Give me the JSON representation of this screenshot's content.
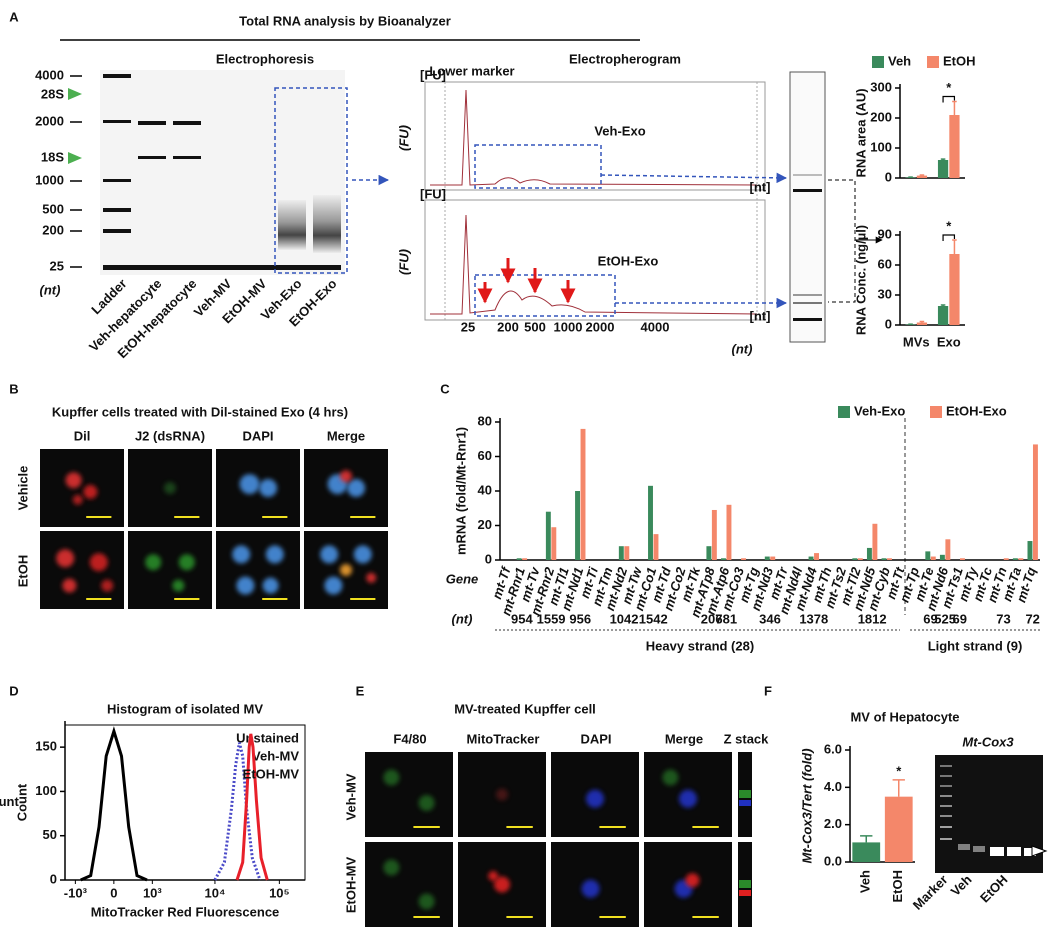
{
  "figure": {
    "A": {
      "label": "A",
      "title": "Total RNA analysis by Bioanalyzer",
      "electrophoresis": "Electrophoresis",
      "electropherogram": "Electropherogram",
      "ladder_sizes": [
        4000,
        2000,
        1000,
        500,
        200,
        25
      ],
      "rrna": [
        "28S",
        "18S"
      ],
      "unit": "(nt)",
      "lanes": [
        "Ladder",
        "Veh-hepatocyte",
        "EtOH-hepatocyte",
        "Veh-MV",
        "EtOH-MV",
        "Veh-Exo",
        "EtOH-Exo"
      ],
      "lower_marker": "Lower marker",
      "traces": [
        "Veh-Exo",
        "EtOH-Exo"
      ],
      "fu": "(FU)",
      "fu_tag": "[FU]",
      "nt_tag": "[nt]",
      "trace_ticks": [
        25,
        200,
        500,
        1000,
        2000,
        4000
      ]
    },
    "B": {
      "label": "B",
      "title": "Kupffer cells treated with Dil-stained Exo (4 hrs)",
      "columns": [
        "Dil",
        "J2 (dsRNA)",
        "DAPI",
        "Merge"
      ],
      "rows": [
        "Vehicle",
        "EtOH"
      ]
    },
    "C": {
      "label": "C",
      "gene_label": "Gene",
      "unit": "(nt)",
      "heavy": "Heavy strand (28)",
      "light": "Light strand (9)"
    },
    "D": {
      "label": "D"
    },
    "E": {
      "label": "E",
      "title": "MV-treated Kupffer cell",
      "columns": [
        "F4/80",
        "MitoTracker",
        "DAPI",
        "Merge"
      ],
      "z_stack": "Z stack",
      "rows": [
        "Veh-MV",
        "EtOH-MV"
      ]
    },
    "F": {
      "label": "F",
      "title": "MV of Hepatocyte",
      "gel_title": "Mt-Cox3",
      "gel_lanes": [
        "Marker",
        "Veh",
        "EtOH"
      ]
    }
  },
  "chart_data": [
    {
      "type": "bar",
      "ylabel": "RNA area (AU)",
      "categories": [
        null,
        null
      ],
      "series": [
        {
          "name": "Veh",
          "color": "#3a8a5c",
          "values": [
            2,
            60
          ],
          "errors": [
            1,
            3
          ]
        },
        {
          "name": "EtOH",
          "color": "#f4876a",
          "values": [
            8,
            210
          ],
          "errors": [
            2,
            45
          ]
        }
      ],
      "ylim": [
        0,
        300
      ],
      "yticks": [
        0,
        100,
        200,
        300
      ],
      "annotation": "*"
    },
    {
      "type": "bar",
      "ylabel": "RNA Conc. (ng/µl)",
      "categories": [
        "MVs",
        "Exo"
      ],
      "series": [
        {
          "color": "#3a8a5c",
          "values": [
            0.5,
            19
          ],
          "errors": [
            0.3,
            1
          ]
        },
        {
          "color": "#f4876a",
          "values": [
            2.5,
            71
          ],
          "errors": [
            1,
            14
          ]
        }
      ],
      "ylim": [
        0,
        90
      ],
      "yticks": [
        0,
        30,
        60,
        90
      ],
      "annotation": "*"
    },
    {
      "type": "bar",
      "ylabel": "mRNA (fold/Mt-Rnr1)",
      "categories": [
        "mt-Tf",
        "mt-Rnr1",
        "mt-Tv",
        "mt-Rnr2",
        "mt-Tl1",
        "mt-Nd1",
        "mt-Ti",
        "mt-Tm",
        "mt-Nd2",
        "mt-Tw",
        "mt-Co1",
        "mt-Td",
        "mt-Co2",
        "mt-Tk",
        "mt-ATp8",
        "mt-Atp6",
        "mt-Co3",
        "mt-Tg",
        "mt-Nd3",
        "mt-Tr",
        "mt-Nd4l",
        "mt-Nd4",
        "mt-Th",
        "mt-Ts2",
        "mt-Tl2",
        "mt-Nd5",
        "mt-Cyb",
        "mt-Tt",
        "mt-Tp",
        "mt-Te",
        "mt-Nd6",
        "mt-Ts1",
        "mt-Ty",
        "mt-Tc",
        "mt-Tn",
        "mt-Ta",
        "mt-Tq"
      ],
      "gene_lengths": [
        null,
        954,
        null,
        1559,
        null,
        956,
        null,
        null,
        1042,
        null,
        1542,
        null,
        null,
        null,
        207,
        681,
        null,
        null,
        346,
        null,
        null,
        1378,
        null,
        null,
        null,
        1812,
        null,
        null,
        null,
        69,
        525,
        69,
        null,
        null,
        73,
        null,
        72
      ],
      "series": [
        {
          "name": "Veh-Exo",
          "color": "#3a8a5c",
          "values": [
            0,
            1,
            0,
            28,
            0,
            40,
            0,
            0,
            8,
            0,
            43,
            0,
            0,
            0,
            8,
            1,
            0,
            0,
            2,
            0,
            0,
            2,
            0,
            0,
            1,
            7,
            1,
            0,
            0,
            5,
            3,
            0,
            0,
            0,
            0,
            1,
            11
          ]
        },
        {
          "name": "EtOH-Exo",
          "color": "#f4876a",
          "values": [
            0,
            1,
            0,
            19,
            0,
            76,
            0,
            0,
            8,
            0,
            15,
            0,
            0,
            0,
            29,
            32,
            1,
            0,
            2,
            0,
            0,
            4,
            0,
            0,
            1,
            21,
            1,
            0,
            0,
            2,
            12,
            1,
            0,
            0,
            1,
            1,
            67
          ]
        }
      ],
      "ylim": [
        0,
        80
      ],
      "yticks": [
        0,
        20,
        40,
        60,
        80
      ]
    },
    {
      "type": "line",
      "title": "Histogram of isolated MV",
      "xlabel": "MitoTracker Red Fluorescence",
      "ylabel": "Count",
      "xscale": "biexponential",
      "xlim": [
        -1500,
        250000
      ],
      "xticks": [
        {
          "value": -1000,
          "label": "-10³"
        },
        0,
        {
          "value": 1000,
          "label": "10³"
        },
        {
          "value": 10000,
          "label": "10⁴"
        },
        {
          "value": 100000,
          "label": "10⁵"
        }
      ],
      "ylim": [
        0,
        175
      ],
      "yticks": [
        0,
        50,
        100,
        150
      ],
      "legend": "upper right",
      "series": [
        {
          "name": "Unstained",
          "color": "#000000",
          "x": [
            -800,
            -500,
            -300,
            -150,
            0,
            150,
            300,
            500,
            800
          ],
          "values": [
            0,
            5,
            60,
            140,
            168,
            140,
            60,
            5,
            0
          ]
        },
        {
          "name": "Veh-MV",
          "color": "#4a4ac8",
          "dash": "dotted",
          "x": [
            10000,
            14000,
            18000,
            21000,
            24000,
            27000,
            31000,
            38000,
            50000
          ],
          "values": [
            0,
            20,
            80,
            130,
            155,
            140,
            80,
            25,
            0
          ]
        },
        {
          "name": "EtOH-MV",
          "color": "#e8202a",
          "x": [
            22000,
            27000,
            31000,
            34000,
            36000,
            39000,
            44000,
            52000,
            65000
          ],
          "values": [
            0,
            20,
            90,
            150,
            165,
            150,
            90,
            25,
            0
          ]
        }
      ]
    },
    {
      "type": "bar",
      "ylabel": "Mt-Cox3/Tert (fold)",
      "categories": [
        "Veh",
        "EtOH"
      ],
      "colors": [
        "#3a8a5c",
        "#f4876a"
      ],
      "values": [
        1.05,
        3.5
      ],
      "errors": [
        0.35,
        0.9
      ],
      "ylim": [
        0,
        6
      ],
      "yticks": [
        {
          "value": 0,
          "label": "0.0"
        },
        {
          "value": 2,
          "label": "2.0"
        },
        {
          "value": 4,
          "label": "4.0"
        },
        {
          "value": 6,
          "label": "6.0"
        }
      ],
      "annotation": "*"
    }
  ]
}
